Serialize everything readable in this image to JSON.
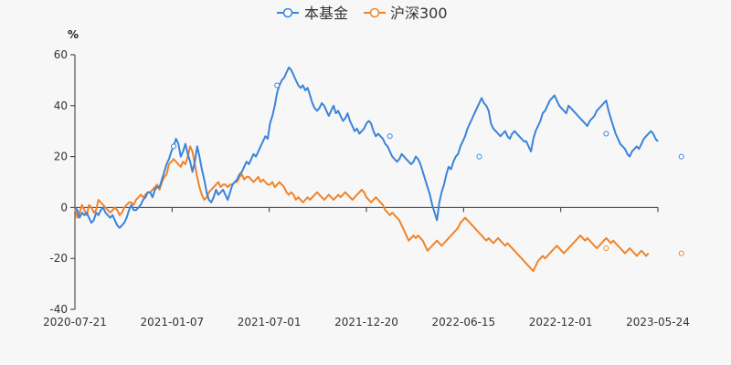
{
  "chart_data": {
    "type": "line",
    "title": "",
    "unit_label": "%",
    "xlabel": "",
    "ylabel": "%",
    "ylim": [
      -40,
      60
    ],
    "y_ticks": [
      -40,
      -20,
      0,
      20,
      40,
      60
    ],
    "x_tick_labels": [
      "2020-07-21",
      "2021-01-07",
      "2021-07-01",
      "2021-12-20",
      "2022-06-15",
      "2022-12-01",
      "2023-05-24"
    ],
    "legend_position": "top-center",
    "grid": false,
    "series": [
      {
        "name": "本基金",
        "color": "#3a84d9",
        "values": [
          0,
          -1,
          -4,
          -2,
          -3,
          -2,
          -4,
          -6,
          -5,
          -2,
          -3,
          -1,
          0,
          -2,
          -3,
          -4,
          -3,
          -5,
          -7,
          -8,
          -7,
          -6,
          -4,
          -1,
          1,
          -1,
          -1,
          0,
          1,
          3,
          4,
          6,
          6,
          4,
          7,
          8,
          8,
          11,
          14,
          17,
          19,
          22,
          24,
          27,
          25,
          20,
          22,
          25,
          21,
          18,
          14,
          18,
          24,
          20,
          15,
          11,
          6,
          3,
          2,
          4,
          7,
          5,
          6,
          7,
          5,
          3,
          6,
          9,
          10,
          11,
          13,
          14,
          16,
          18,
          17,
          19,
          21,
          20,
          22,
          24,
          26,
          28,
          27,
          33,
          36,
          40,
          45,
          48,
          50,
          51,
          53,
          55,
          54,
          52,
          50,
          48,
          47,
          48,
          46,
          47,
          44,
          41,
          39,
          38,
          39,
          41,
          40,
          38,
          36,
          38,
          40,
          37,
          38,
          36,
          34,
          35,
          37,
          34,
          32,
          30,
          31,
          29,
          30,
          31,
          33,
          34,
          33,
          30,
          28,
          29,
          28,
          27,
          25,
          24,
          22,
          20,
          19,
          18,
          19,
          21,
          20,
          19,
          18,
          17,
          18,
          20,
          19,
          17,
          14,
          11,
          8,
          5,
          1,
          -2,
          -5,
          2,
          6,
          9,
          13,
          16,
          15,
          18,
          20,
          21,
          24,
          26,
          28,
          31,
          33,
          35,
          37,
          39,
          41,
          43,
          41,
          40,
          38,
          33,
          31,
          30,
          29,
          28,
          29,
          30,
          28,
          27,
          29,
          30,
          29,
          28,
          27,
          26,
          26,
          24,
          22,
          27,
          30,
          32,
          34,
          37,
          38,
          40,
          42,
          43,
          44,
          42,
          40,
          39,
          38,
          37,
          40,
          39,
          38,
          37,
          36,
          35,
          34,
          33,
          32,
          34,
          35,
          36,
          38,
          39,
          40,
          41,
          42,
          38,
          35,
          32,
          29,
          27,
          25,
          24,
          23,
          21,
          20,
          22,
          23,
          24,
          23,
          25,
          27,
          28,
          29,
          30,
          29,
          27,
          26
        ],
        "markers": [
          {
            "index": 42,
            "value": 24
          },
          {
            "index": 86,
            "value": 48
          },
          {
            "index": 134,
            "value": 28
          },
          {
            "index": 172,
            "value": 20
          },
          {
            "index": 226,
            "value": 29
          },
          {
            "index": 258,
            "value": 20
          }
        ]
      },
      {
        "name": "沪深300",
        "color": "#f0832a",
        "values": [
          0,
          -4,
          -2,
          1,
          -1,
          -3,
          1,
          0,
          -2,
          -1,
          3,
          2,
          1,
          0,
          -1,
          -2,
          -1,
          0,
          -1,
          -3,
          -2,
          0,
          1,
          2,
          2,
          1,
          3,
          4,
          5,
          4,
          5,
          6,
          6,
          7,
          8,
          9,
          7,
          10,
          12,
          13,
          17,
          18,
          19,
          18,
          17,
          16,
          18,
          17,
          20,
          24,
          22,
          17,
          12,
          8,
          5,
          3,
          4,
          6,
          7,
          8,
          9,
          10,
          8,
          9,
          9,
          8,
          9,
          9,
          10,
          10,
          12,
          13,
          11,
          12,
          12,
          11,
          10,
          11,
          12,
          10,
          11,
          10,
          9,
          9,
          10,
          8,
          9,
          10,
          9,
          8,
          6,
          5,
          6,
          5,
          3,
          4,
          3,
          2,
          3,
          4,
          3,
          4,
          5,
          6,
          5,
          4,
          3,
          4,
          5,
          4,
          3,
          4,
          5,
          4,
          5,
          6,
          5,
          4,
          3,
          4,
          5,
          6,
          7,
          6,
          4,
          3,
          2,
          3,
          4,
          3,
          2,
          1,
          -1,
          -2,
          -3,
          -2,
          -3,
          -4,
          -5,
          -7,
          -9,
          -11,
          -13,
          -12,
          -11,
          -12,
          -11,
          -12,
          -13,
          -15,
          -17,
          -16,
          -15,
          -14,
          -13,
          -14,
          -15,
          -14,
          -13,
          -12,
          -11,
          -10,
          -9,
          -8,
          -6,
          -5,
          -4,
          -5,
          -6,
          -7,
          -8,
          -9,
          -10,
          -11,
          -12,
          -13,
          -12,
          -13,
          -14,
          -13,
          -12,
          -13,
          -14,
          -15,
          -14,
          -15,
          -16,
          -17,
          -18,
          -19,
          -20,
          -21,
          -22,
          -23,
          -24,
          -25,
          -23,
          -21,
          -20,
          -19,
          -20,
          -19,
          -18,
          -17,
          -16,
          -15,
          -16,
          -17,
          -18,
          -17,
          -16,
          -15,
          -14,
          -13,
          -12,
          -11,
          -12,
          -13,
          -12,
          -13,
          -14,
          -15,
          -16,
          -15,
          -14,
          -13,
          -12,
          -13,
          -14,
          -13,
          -14,
          -15,
          -16,
          -17,
          -18,
          -17,
          -16,
          -17,
          -18,
          -19,
          -18,
          -17,
          -18,
          -19,
          -18
        ],
        "markers": [
          {
            "index": 226,
            "value": -16
          },
          {
            "index": 258,
            "value": -18
          }
        ]
      }
    ]
  }
}
